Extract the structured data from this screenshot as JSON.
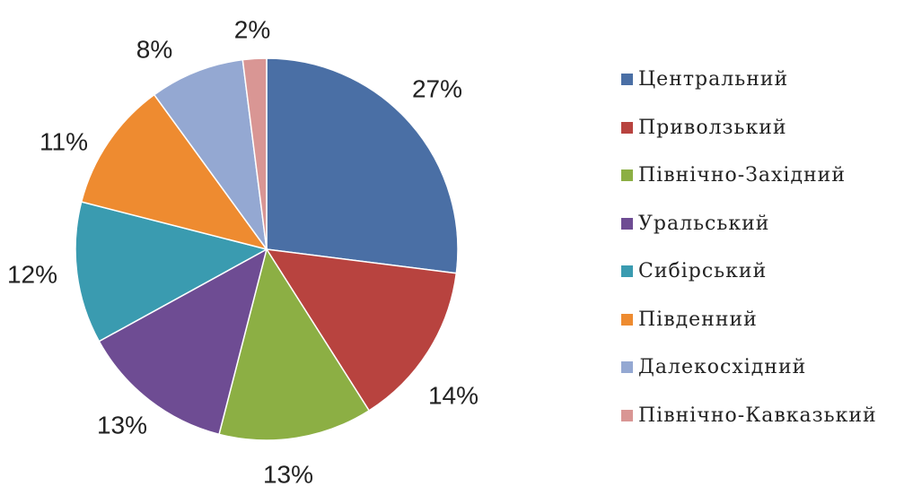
{
  "chart_data": {
    "type": "pie",
    "title": "",
    "legend_placement": "right",
    "start_angle_deg": 0,
    "direction": "clockwise",
    "slices": [
      {
        "label": "Центральний",
        "value": 27,
        "value_label": "27%",
        "color": "#4A6FA5"
      },
      {
        "label": "Приволзький",
        "value": 14,
        "value_label": "14%",
        "color": "#B8433F"
      },
      {
        "label": "Північно-Західний",
        "value": 13,
        "value_label": "13%",
        "color": "#8CAF44"
      },
      {
        "label": "Уральський",
        "value": 13,
        "value_label": "13%",
        "color": "#6E4C93"
      },
      {
        "label": "Сибірський",
        "value": 12,
        "value_label": "12%",
        "color": "#3A9BB0"
      },
      {
        "label": "Південний",
        "value": 11,
        "value_label": "11%",
        "color": "#EE8B30"
      },
      {
        "label": "Далекосхідний",
        "value": 8,
        "value_label": "8%",
        "color": "#94A8D2"
      },
      {
        "label": "Північно-Кавказький",
        "value": 2,
        "value_label": "2%",
        "color": "#D99694"
      }
    ]
  }
}
